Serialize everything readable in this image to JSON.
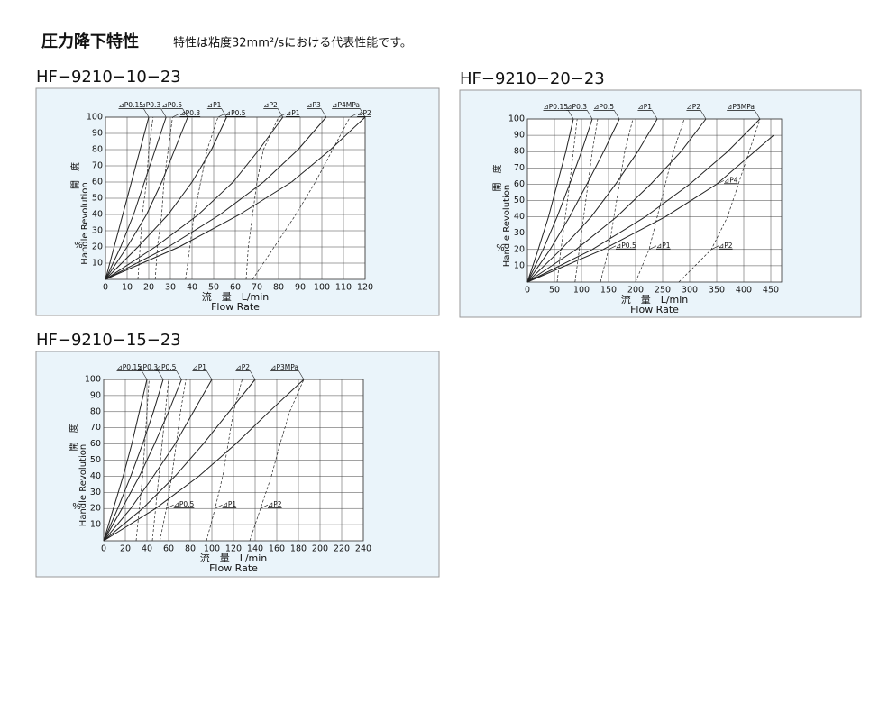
{
  "header": {
    "title": "圧力降下特性",
    "note": "特性は粘度32mm²/sにおける代表性能です。"
  },
  "chart_data": [
    {
      "type": "line",
      "title": "HF−9210−10−23",
      "xlabel": "流　量　L/min",
      "xlabel_en": "Flow Rate",
      "ylabel": "開　度",
      "ylabel_en": "Handle Revolution",
      "yunit": "%",
      "color": "#222222",
      "grid": true,
      "xlim": [
        0,
        120
      ],
      "ylim": [
        0,
        100
      ],
      "xticks": [
        0,
        10,
        20,
        30,
        40,
        50,
        60,
        70,
        80,
        90,
        100,
        110,
        120
      ],
      "yticks": [
        10,
        20,
        30,
        40,
        50,
        60,
        70,
        80,
        90,
        100
      ],
      "series": [
        {
          "name": "⊿P0.15",
          "style": "solid",
          "x": [
            0,
            4,
            8,
            12,
            16,
            20
          ],
          "values": [
            0,
            20,
            40,
            60,
            80,
            100
          ]
        },
        {
          "name": "⊿P0.3",
          "style": "solid",
          "x": [
            0,
            7,
            13,
            18,
            23,
            28
          ],
          "values": [
            0,
            20,
            40,
            60,
            80,
            100
          ]
        },
        {
          "name": "⊿P0.5",
          "style": "solid",
          "x": [
            0,
            10,
            19,
            26,
            32,
            38
          ],
          "values": [
            0,
            20,
            40,
            60,
            80,
            100
          ]
        },
        {
          "name": "⊿P1",
          "style": "solid",
          "x": [
            0,
            15,
            29,
            40,
            49,
            56
          ],
          "values": [
            0,
            20,
            40,
            60,
            80,
            100
          ]
        },
        {
          "name": "⊿P2",
          "style": "solid",
          "x": [
            0,
            23,
            43,
            59,
            71,
            82
          ],
          "values": [
            0,
            20,
            40,
            60,
            80,
            100
          ]
        },
        {
          "name": "⊿P3",
          "style": "solid",
          "x": [
            0,
            29,
            53,
            73,
            89,
            102
          ],
          "values": [
            0,
            20,
            40,
            60,
            80,
            100
          ]
        },
        {
          "name": "⊿P4MPa",
          "style": "solid",
          "x": [
            0,
            34,
            62,
            86,
            104,
            120
          ],
          "values": [
            0,
            20,
            40,
            60,
            80,
            100
          ]
        },
        {
          "style": "dashed",
          "x": [
            15,
            16,
            17,
            19,
            20,
            22
          ],
          "values": [
            0,
            20,
            40,
            60,
            80,
            100
          ]
        },
        {
          "name": "⊿P0.3",
          "style": "dashed",
          "x": [
            23,
            24,
            26,
            27,
            29,
            31
          ],
          "values": [
            0,
            20,
            40,
            60,
            80,
            100
          ]
        },
        {
          "name": "⊿P0.5",
          "style": "dashed",
          "x": [
            37,
            39,
            41,
            44,
            47,
            52
          ],
          "values": [
            0,
            20,
            40,
            60,
            80,
            100
          ]
        },
        {
          "name": "⊿P1",
          "style": "dashed",
          "x": [
            65,
            66,
            68,
            70,
            73,
            80
          ],
          "values": [
            0,
            20,
            40,
            60,
            80,
            100
          ]
        },
        {
          "name": "⊿P2",
          "style": "dashed",
          "x": [
            68,
            78,
            88,
            97,
            105,
            113
          ],
          "values": [
            0,
            20,
            40,
            60,
            80,
            100
          ]
        }
      ]
    },
    {
      "type": "line",
      "title": "HF−9210−20−23",
      "xlabel": "流　量　L/min",
      "xlabel_en": "Flow Rate",
      "ylabel": "開　度",
      "ylabel_en": "Handle Revolution",
      "yunit": "%",
      "color": "#222222",
      "grid": true,
      "xlim": [
        0,
        470
      ],
      "ylim": [
        0,
        100
      ],
      "xticks": [
        0,
        50,
        100,
        150,
        200,
        250,
        300,
        350,
        400,
        450
      ],
      "yticks": [
        10,
        20,
        30,
        40,
        50,
        60,
        70,
        80,
        90,
        100
      ],
      "series": [
        {
          "name": "⊿P0.15",
          "style": "solid",
          "x": [
            0,
            20,
            39,
            55,
            71,
            85
          ],
          "values": [
            0,
            20,
            40,
            60,
            80,
            100
          ]
        },
        {
          "name": "⊿P0.3",
          "style": "solid",
          "x": [
            0,
            29,
            55,
            78,
            100,
            120
          ],
          "values": [
            0,
            20,
            40,
            60,
            80,
            100
          ]
        },
        {
          "name": "⊿P0.5",
          "style": "solid",
          "x": [
            0,
            42,
            78,
            110,
            141,
            170
          ],
          "values": [
            0,
            20,
            40,
            60,
            80,
            100
          ]
        },
        {
          "name": "⊿P1",
          "style": "solid",
          "x": [
            0,
            62,
            118,
            163,
            204,
            240
          ],
          "values": [
            0,
            20,
            40,
            60,
            80,
            100
          ]
        },
        {
          "name": "⊿P2",
          "style": "solid",
          "x": [
            0,
            90,
            165,
            228,
            284,
            330
          ],
          "values": [
            0,
            20,
            40,
            60,
            80,
            100
          ]
        },
        {
          "name": "⊿P3MPa",
          "style": "solid",
          "x": [
            0,
            120,
            218,
            300,
            370,
            430
          ],
          "values": [
            0,
            20,
            40,
            60,
            80,
            100
          ]
        },
        {
          "name": "⊿P4",
          "style": "solid",
          "x": [
            0,
            140,
            255,
            350,
            420,
            455
          ],
          "values": [
            0,
            20,
            40,
            60,
            80,
            90
          ]
        },
        {
          "style": "dashed",
          "x": [
            55,
            62,
            70,
            78,
            85,
            92
          ],
          "values": [
            0,
            20,
            40,
            60,
            80,
            100
          ]
        },
        {
          "style": "dashed",
          "x": [
            88,
            96,
            104,
            112,
            120,
            130
          ],
          "values": [
            0,
            20,
            40,
            60,
            80,
            100
          ]
        },
        {
          "name": "⊿P0.5",
          "style": "dashed",
          "x": [
            135,
            150,
            160,
            170,
            180,
            195
          ],
          "values": [
            0,
            20,
            40,
            60,
            80,
            100
          ]
        },
        {
          "name": "⊿P1",
          "style": "dashed",
          "x": [
            200,
            225,
            240,
            255,
            270,
            290
          ],
          "values": [
            0,
            20,
            40,
            60,
            80,
            100
          ]
        },
        {
          "name": "⊿P2",
          "style": "dashed",
          "x": [
            280,
            340,
            370,
            390,
            410,
            430
          ],
          "values": [
            0,
            20,
            40,
            60,
            80,
            100
          ]
        }
      ]
    },
    {
      "type": "line",
      "title": "HF−9210−15−23",
      "xlabel": "流　量　L/min",
      "xlabel_en": "Flow Rate",
      "ylabel": "開　度",
      "ylabel_en": "Handle Revolution",
      "yunit": "%",
      "color": "#222222",
      "grid": true,
      "xlim": [
        0,
        240
      ],
      "ylim": [
        0,
        100
      ],
      "xticks": [
        0,
        20,
        40,
        60,
        80,
        100,
        120,
        140,
        160,
        180,
        200,
        220,
        240
      ],
      "yticks": [
        10,
        20,
        30,
        40,
        50,
        60,
        70,
        80,
        90,
        100
      ],
      "series": [
        {
          "name": "⊿P0.15",
          "style": "solid",
          "x": [
            0,
            9,
            18,
            26,
            33,
            40
          ],
          "values": [
            0,
            20,
            40,
            60,
            80,
            100
          ]
        },
        {
          "name": "⊿P0.3",
          "style": "solid",
          "x": [
            0,
            13,
            25,
            36,
            46,
            55
          ],
          "values": [
            0,
            20,
            40,
            60,
            80,
            100
          ]
        },
        {
          "name": "⊿P0.5",
          "style": "solid",
          "x": [
            0,
            17,
            33,
            47,
            60,
            72
          ],
          "values": [
            0,
            20,
            40,
            60,
            80,
            100
          ]
        },
        {
          "name": "⊿P1",
          "style": "solid",
          "x": [
            0,
            25,
            46,
            66,
            83,
            100
          ],
          "values": [
            0,
            20,
            40,
            60,
            80,
            100
          ]
        },
        {
          "name": "⊿P2",
          "style": "solid",
          "x": [
            0,
            36,
            66,
            92,
            116,
            140
          ],
          "values": [
            0,
            20,
            40,
            60,
            80,
            100
          ]
        },
        {
          "name": "⊿P3MPa",
          "style": "solid",
          "x": [
            0,
            48,
            88,
            122,
            153,
            185
          ],
          "values": [
            0,
            20,
            40,
            60,
            80,
            100
          ]
        },
        {
          "style": "dashed",
          "x": [
            30,
            33,
            36,
            38,
            40,
            42
          ],
          "values": [
            0,
            20,
            40,
            60,
            80,
            100
          ]
        },
        {
          "style": "dashed",
          "x": [
            45,
            48,
            51,
            54,
            57,
            60
          ],
          "values": [
            0,
            20,
            40,
            60,
            80,
            100
          ]
        },
        {
          "name": "⊿P0.5",
          "style": "dashed",
          "x": [
            52,
            58,
            63,
            67,
            71,
            76
          ],
          "values": [
            0,
            20,
            40,
            60,
            80,
            100
          ]
        },
        {
          "name": "⊿P1",
          "style": "dashed",
          "x": [
            95,
            103,
            110,
            115,
            120,
            128
          ],
          "values": [
            0,
            20,
            40,
            60,
            80,
            100
          ]
        },
        {
          "name": "⊿P2",
          "style": "dashed",
          "x": [
            135,
            145,
            155,
            163,
            172,
            185
          ],
          "values": [
            0,
            20,
            40,
            60,
            80,
            100
          ]
        }
      ]
    }
  ]
}
